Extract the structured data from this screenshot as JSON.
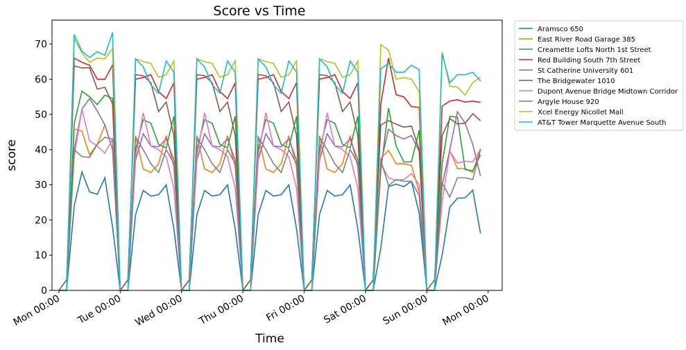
{
  "chart_data": {
    "type": "line",
    "title": "Score vs Time",
    "x_label": "Time",
    "y_label": "score",
    "x": [
      0,
      3,
      6,
      9,
      12,
      15,
      18,
      21,
      24,
      27,
      30,
      33,
      36,
      39,
      42,
      45,
      48,
      51,
      54,
      57,
      60,
      63,
      66,
      69,
      72,
      75,
      78,
      81,
      84,
      87,
      90,
      93,
      96,
      99,
      102,
      105,
      108,
      111,
      114,
      117,
      120,
      123,
      126,
      129,
      132,
      135,
      138,
      141,
      144,
      147,
      150,
      153,
      156,
      159,
      162,
      165
    ],
    "xlim": [
      -2.7,
      173.5
    ],
    "xticks": [
      {
        "value": 0,
        "label": "Mon 00:00"
      },
      {
        "value": 24,
        "label": "Tue 00:00"
      },
      {
        "value": 48,
        "label": "Wed 00:00"
      },
      {
        "value": 72,
        "label": "Thu 00:00"
      },
      {
        "value": 96,
        "label": "Fri 00:00"
      },
      {
        "value": 120,
        "label": "Sat 00:00"
      },
      {
        "value": 144,
        "label": "Sun 00:00"
      },
      {
        "value": 168,
        "label": "Mon 00:00"
      }
    ],
    "ylim": [
      0,
      76.8
    ],
    "yticks": [
      0,
      10,
      20,
      30,
      40,
      50,
      60,
      70
    ],
    "legend": "outside upper right",
    "series": [
      {
        "name": "Aramsco 650",
        "color": "#1f77b4",
        "values": [
          0,
          0,
          24,
          33.7,
          28,
          27.3,
          32,
          18,
          0,
          0,
          21.5,
          28.4,
          26.8,
          27.2,
          30,
          17.5,
          0,
          0,
          21.5,
          28.4,
          26.8,
          27.2,
          30,
          17.5,
          0,
          0,
          21.5,
          28.4,
          26.8,
          27.2,
          30,
          17.5,
          0,
          0,
          21.5,
          28.4,
          26.8,
          27.2,
          30,
          17.5,
          0,
          0,
          12,
          29.5,
          30.2,
          29.5,
          31,
          22,
          0,
          0,
          10,
          23.7,
          26.2,
          26.3,
          28.5,
          16.2
        ]
      },
      {
        "name": "East River Road Garage 385",
        "color": "#ff7f0e",
        "values": [
          0,
          0,
          45.8,
          45.3,
          38.5,
          41.5,
          47,
          40,
          0,
          0,
          44,
          34.5,
          33.5,
          36,
          44,
          35,
          0,
          0,
          44,
          34.5,
          33.5,
          36,
          44,
          35,
          0,
          0,
          44,
          34.5,
          33.5,
          36,
          44,
          35,
          0,
          0,
          44,
          34.5,
          33.5,
          36,
          44,
          35,
          0,
          0,
          37.5,
          39.8,
          36,
          36,
          35.5,
          28,
          0,
          0,
          30,
          39.7,
          34.6,
          34.6,
          33.5,
          40.3
        ]
      },
      {
        "name": "Creamette Lofts North 1st Street",
        "color": "#2ca02c",
        "values": [
          0,
          0,
          47.5,
          56.6,
          55,
          52.8,
          55.5,
          54.5,
          0,
          0,
          40,
          48.5,
          47.5,
          41.5,
          40.5,
          49.5,
          0,
          0,
          40,
          48.5,
          47.5,
          41.5,
          40.5,
          49.5,
          0,
          0,
          40,
          48.5,
          47.5,
          41.5,
          40.5,
          49.5,
          0,
          0,
          40,
          48.5,
          47.5,
          41.5,
          40.5,
          49.5,
          0,
          0,
          34,
          51.8,
          41,
          36.5,
          36.5,
          45.5,
          0,
          0,
          36,
          49.5,
          49.2,
          34.3,
          34,
          38.5
        ]
      },
      {
        "name": "Red Building South 7th Street",
        "color": "#d62728",
        "values": [
          0,
          0,
          66,
          64.8,
          64,
          60,
          60,
          64,
          0,
          3,
          60,
          60.5,
          61.3,
          56.5,
          54.5,
          59,
          0,
          3,
          60,
          60.5,
          61.3,
          56.5,
          54.5,
          59,
          0,
          3,
          60,
          60.5,
          61.3,
          56.5,
          54.5,
          59,
          0,
          3,
          60,
          60.5,
          61.3,
          56.5,
          54.5,
          59,
          0,
          3,
          53,
          66,
          55.6,
          55,
          52.2,
          52,
          0,
          0,
          52.3,
          53.8,
          54.2,
          53.5,
          53.8,
          53.4
        ]
      },
      {
        "name": "St Catherine University 601",
        "color": "#9467bd",
        "values": [
          0,
          0,
          40,
          51.5,
          54.5,
          51,
          47,
          40,
          0,
          0,
          37,
          44.5,
          41,
          40.8,
          43,
          37,
          0,
          0,
          37,
          44.5,
          41,
          40.8,
          43,
          37,
          0,
          0,
          37,
          44.5,
          41,
          40.8,
          43,
          37,
          0,
          0,
          37,
          44.5,
          41,
          40.8,
          43,
          37,
          0,
          0,
          36,
          45.8,
          44,
          43,
          44,
          39.5,
          0,
          0,
          30,
          40,
          50.8,
          47.5,
          41.5,
          32.5
        ]
      },
      {
        "name": "The Bridgewater 1010",
        "color": "#8c564b",
        "values": [
          0,
          3,
          63.8,
          63.2,
          63.3,
          57.2,
          57.7,
          53,
          0,
          3,
          61.3,
          61,
          59,
          50.8,
          53.5,
          44,
          0,
          3,
          61.3,
          61,
          59,
          50.8,
          53.5,
          44,
          0,
          3,
          61.3,
          61,
          59,
          50.8,
          53.5,
          44,
          0,
          3,
          61.3,
          61,
          59,
          50.8,
          53.5,
          44,
          0,
          3,
          47,
          48.2,
          47.2,
          46.4,
          46.7,
          40,
          0,
          3,
          44,
          48.8,
          47.3,
          47.5,
          50.2,
          48.2
        ]
      },
      {
        "name": "Dupont Avenue Bridge Midtown Corridor",
        "color": "#e377c2",
        "values": [
          0,
          0,
          38,
          51.5,
          42.5,
          41,
          39,
          43,
          0,
          0,
          38,
          50.5,
          41,
          40,
          38,
          29,
          0,
          0,
          38,
          50.5,
          41,
          40,
          38,
          29,
          0,
          0,
          38,
          50.5,
          41,
          40,
          38,
          29,
          0,
          0,
          38,
          50.5,
          41,
          40,
          38,
          29,
          0,
          0,
          36,
          32,
          31.3,
          31.5,
          33.2,
          30,
          0,
          0,
          25,
          39.5,
          36.2,
          36.7,
          36.5,
          40
        ]
      },
      {
        "name": "Argyle House 920",
        "color": "#7f7f7f",
        "values": [
          0,
          0,
          40,
          38,
          37.8,
          41.5,
          43.5,
          43,
          0,
          0,
          43.5,
          40,
          36,
          33.5,
          40,
          36,
          0,
          0,
          43.5,
          40,
          36,
          33.5,
          40,
          36,
          0,
          0,
          43.5,
          40,
          36,
          33.5,
          40,
          36,
          0,
          0,
          43.5,
          40,
          36,
          33.5,
          40,
          36,
          0,
          0,
          37,
          29.8,
          31.5,
          31,
          31,
          27,
          0,
          0,
          30.5,
          26.5,
          32,
          32,
          31.5,
          40
        ]
      },
      {
        "name": "Xcel Energy Nicollet Mall",
        "color": "#bcbd22",
        "values": [
          0,
          0,
          71.5,
          67.5,
          64.8,
          66,
          65.8,
          68.7,
          0,
          0,
          65.8,
          65,
          64.5,
          60.5,
          61.3,
          65.2,
          0,
          0,
          65.8,
          65,
          64.5,
          60.5,
          61.3,
          65.2,
          0,
          0,
          65.8,
          65,
          64.5,
          60.5,
          61.3,
          65.2,
          0,
          0,
          65.8,
          65,
          64.5,
          60.5,
          61.3,
          65.2,
          0,
          0,
          69.8,
          68.3,
          60,
          60.5,
          60,
          56.5,
          0,
          0,
          67.8,
          58,
          57.8,
          55.5,
          59,
          60.7
        ]
      },
      {
        "name": "AT&T Tower Marquette Avenue South",
        "color": "#17becf",
        "values": [
          0,
          0,
          72.7,
          68,
          66.2,
          67.8,
          66.8,
          73.3,
          0,
          0,
          65.8,
          63.5,
          58.4,
          56,
          65.2,
          62,
          0,
          0,
          65.8,
          63.5,
          58.4,
          56,
          65.2,
          62,
          0,
          0,
          65.8,
          63.5,
          58.4,
          56,
          65.2,
          62,
          0,
          0,
          65.8,
          63.5,
          58.4,
          56,
          65.2,
          62,
          0,
          0,
          63,
          64.5,
          62,
          62,
          64,
          62.7,
          0,
          0,
          67.2,
          59,
          61.3,
          61.3,
          62,
          59.5
        ]
      }
    ]
  }
}
